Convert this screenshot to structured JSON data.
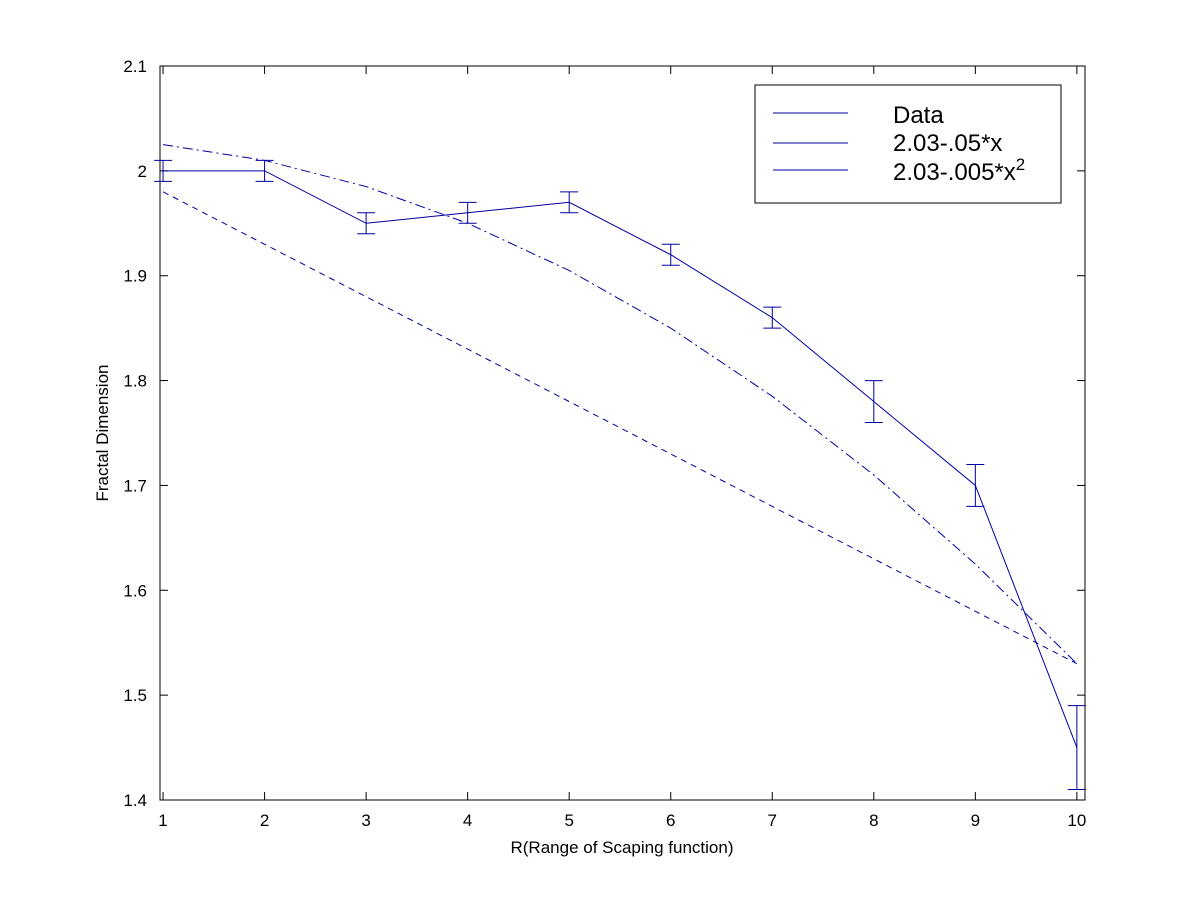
{
  "chart_data": {
    "type": "line",
    "title": "",
    "xlabel": "R(Range of Scaping function)",
    "ylabel": "Fractal Dimension",
    "xlim": [
      0.97,
      10.08
    ],
    "ylim": [
      1.4,
      2.1
    ],
    "xticks": [
      1,
      2,
      3,
      4,
      5,
      6,
      7,
      8,
      9,
      10
    ],
    "yticks": [
      1.4,
      1.5,
      1.6,
      1.7,
      1.8,
      1.9,
      2.0,
      2.1
    ],
    "ytick_labels": [
      "1.4",
      "1.5",
      "1.6",
      "1.7",
      "1.8",
      "1.9",
      "2",
      "2.1"
    ],
    "grid": false,
    "legend_position": "top-right",
    "line_color": "#0000a0",
    "series": [
      {
        "name": "Data",
        "style": "solid",
        "x": [
          1,
          2,
          3,
          4,
          5,
          6,
          7,
          8,
          9,
          10
        ],
        "y": [
          2.0,
          2.0,
          1.95,
          1.96,
          1.97,
          1.92,
          1.86,
          1.78,
          1.7,
          1.45
        ],
        "error": [
          0.01,
          0.01,
          0.01,
          0.01,
          0.01,
          0.01,
          0.01,
          0.02,
          0.02,
          0.04
        ]
      },
      {
        "name": "2.03-.05*x",
        "style": "dashed",
        "x": [
          1,
          2,
          3,
          4,
          5,
          6,
          7,
          8,
          9,
          10
        ],
        "y": [
          1.98,
          1.93,
          1.88,
          1.83,
          1.78,
          1.73,
          1.68,
          1.63,
          1.58,
          1.53
        ]
      },
      {
        "name": "2.03-.005*x²",
        "legend_base": "2.03-.005*x",
        "legend_sup": "2",
        "style": "dashdot",
        "x": [
          1,
          2,
          3,
          4,
          5,
          6,
          7,
          8,
          9,
          10
        ],
        "y": [
          2.025,
          2.01,
          1.985,
          1.95,
          1.905,
          1.85,
          1.785,
          1.71,
          1.625,
          1.53
        ]
      }
    ]
  }
}
